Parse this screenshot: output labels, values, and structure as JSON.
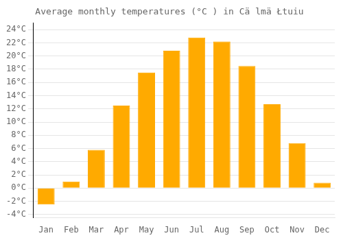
{
  "chart_data": {
    "type": "bar",
    "title": "Average monthly temperatures (°C ) in Cä lmä Łtuiu",
    "categories": [
      "Jan",
      "Feb",
      "Mar",
      "Apr",
      "May",
      "Jun",
      "Jul",
      "Aug",
      "Sep",
      "Oct",
      "Nov",
      "Dec"
    ],
    "values": [
      -2.5,
      1.0,
      5.8,
      12.5,
      17.5,
      20.8,
      22.8,
      22.2,
      18.5,
      12.7,
      6.8,
      0.8
    ],
    "color": "#FFAA00",
    "ylim": [
      -4.5,
      25
    ],
    "yticks": [
      {
        "value": -4,
        "label": "-4°C"
      },
      {
        "value": -2,
        "label": "-2°C"
      },
      {
        "value": 0,
        "label": "0°C"
      },
      {
        "value": 2,
        "label": "2°C"
      },
      {
        "value": 4,
        "label": "4°C"
      },
      {
        "value": 6,
        "label": "6°C"
      },
      {
        "value": 8,
        "label": "8°C"
      },
      {
        "value": 10,
        "label": "10°C"
      },
      {
        "value": 12,
        "label": "12°C"
      },
      {
        "value": 14,
        "label": "14°C"
      },
      {
        "value": 16,
        "label": "16°C"
      },
      {
        "value": 18,
        "label": "18°C"
      },
      {
        "value": 20,
        "label": "20°C"
      },
      {
        "value": 22,
        "label": "22°C"
      },
      {
        "value": 24,
        "label": "24°C"
      }
    ],
    "grid": true
  }
}
